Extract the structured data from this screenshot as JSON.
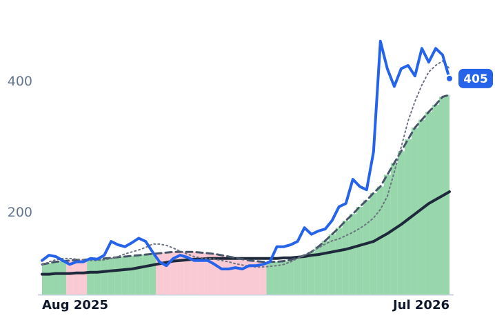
{
  "chart_data": {
    "type": "line",
    "categories": [
      "Aug 2025",
      null,
      null,
      null,
      null,
      null,
      null,
      null,
      null,
      null,
      null,
      null,
      null,
      null,
      null,
      null,
      null,
      null,
      null,
      null,
      null,
      null,
      null,
      null,
      null,
      null,
      null,
      null,
      null,
      null,
      null,
      null,
      null,
      null,
      null,
      null,
      null,
      null,
      null,
      null,
      null,
      null,
      null,
      null,
      null,
      null,
      null,
      null,
      null,
      null,
      null,
      null,
      null,
      null,
      null,
      null,
      null,
      null,
      null,
      "Jul 2026"
    ],
    "series": [
      {
        "color": "#2563eb",
        "style": "solid",
        "width": 4,
        "values": [
          127,
          135,
          133,
          127,
          121,
          125,
          125,
          130,
          129,
          135,
          156,
          151,
          148,
          154,
          161,
          156,
          140,
          125,
          119,
          130,
          135,
          132,
          127,
          127,
          127,
          121,
          114,
          114,
          116,
          114,
          119,
          119,
          121,
          125,
          148,
          148,
          151,
          156,
          177,
          167,
          172,
          175,
          188,
          209,
          214,
          251,
          240,
          235,
          293,
          462,
          420,
          393,
          420,
          425,
          409,
          451,
          430,
          451,
          441,
          405
        ]
      },
      {
        "color": "#6b7280",
        "style": "dotted",
        "width": 2,
        "values": [
          120,
          125,
          128,
          130,
          130,
          129,
          128,
          127,
          127,
          128,
          130,
          133,
          137,
          140,
          143,
          147,
          152,
          152,
          150,
          146,
          141,
          137,
          133,
          131,
          130,
          129,
          127,
          125,
          122,
          120,
          118,
          117,
          117,
          118,
          119,
          121,
          125,
          130,
          135,
          140,
          146,
          152,
          157,
          160,
          165,
          170,
          176,
          183,
          192,
          205,
          225,
          262,
          300,
          340,
          370,
          395,
          415,
          425,
          432,
          420
        ]
      },
      {
        "color": "#475569",
        "style": "dashed",
        "width": 3,
        "values": [
          121,
          123,
          125,
          126,
          127,
          128,
          128,
          129,
          129,
          130,
          131,
          132,
          133,
          134,
          135,
          136,
          137,
          138,
          139,
          140,
          140,
          140,
          140,
          139,
          138,
          137,
          135,
          133,
          131,
          129,
          127,
          126,
          125,
          125,
          125,
          126,
          128,
          131,
          135,
          140,
          148,
          157,
          167,
          177,
          188,
          198,
          209,
          219,
          230,
          240,
          258,
          276,
          294,
          312,
          330,
          342,
          354,
          365,
          377,
          380
        ]
      },
      {
        "color": "#1e293b",
        "style": "solid",
        "width": 4,
        "values": [
          106,
          106,
          107,
          107,
          107,
          108,
          108,
          109,
          109,
          110,
          111,
          112,
          113,
          114,
          116,
          118,
          120,
          122,
          124,
          126,
          127,
          128,
          129,
          129,
          130,
          130,
          130,
          130,
          130,
          130,
          130,
          130,
          130,
          130,
          130,
          131,
          131,
          132,
          133,
          135,
          136,
          138,
          140,
          142,
          144,
          147,
          150,
          153,
          156,
          162,
          168,
          175,
          182,
          190,
          198,
          206,
          214,
          220,
          226,
          232
        ]
      }
    ],
    "shade_colors": {
      "above": "#86cf9e",
      "below": "#f9c4cf"
    },
    "ylim": [
      75,
      525
    ],
    "yticks": [
      200,
      400
    ],
    "grid": false
  }
}
